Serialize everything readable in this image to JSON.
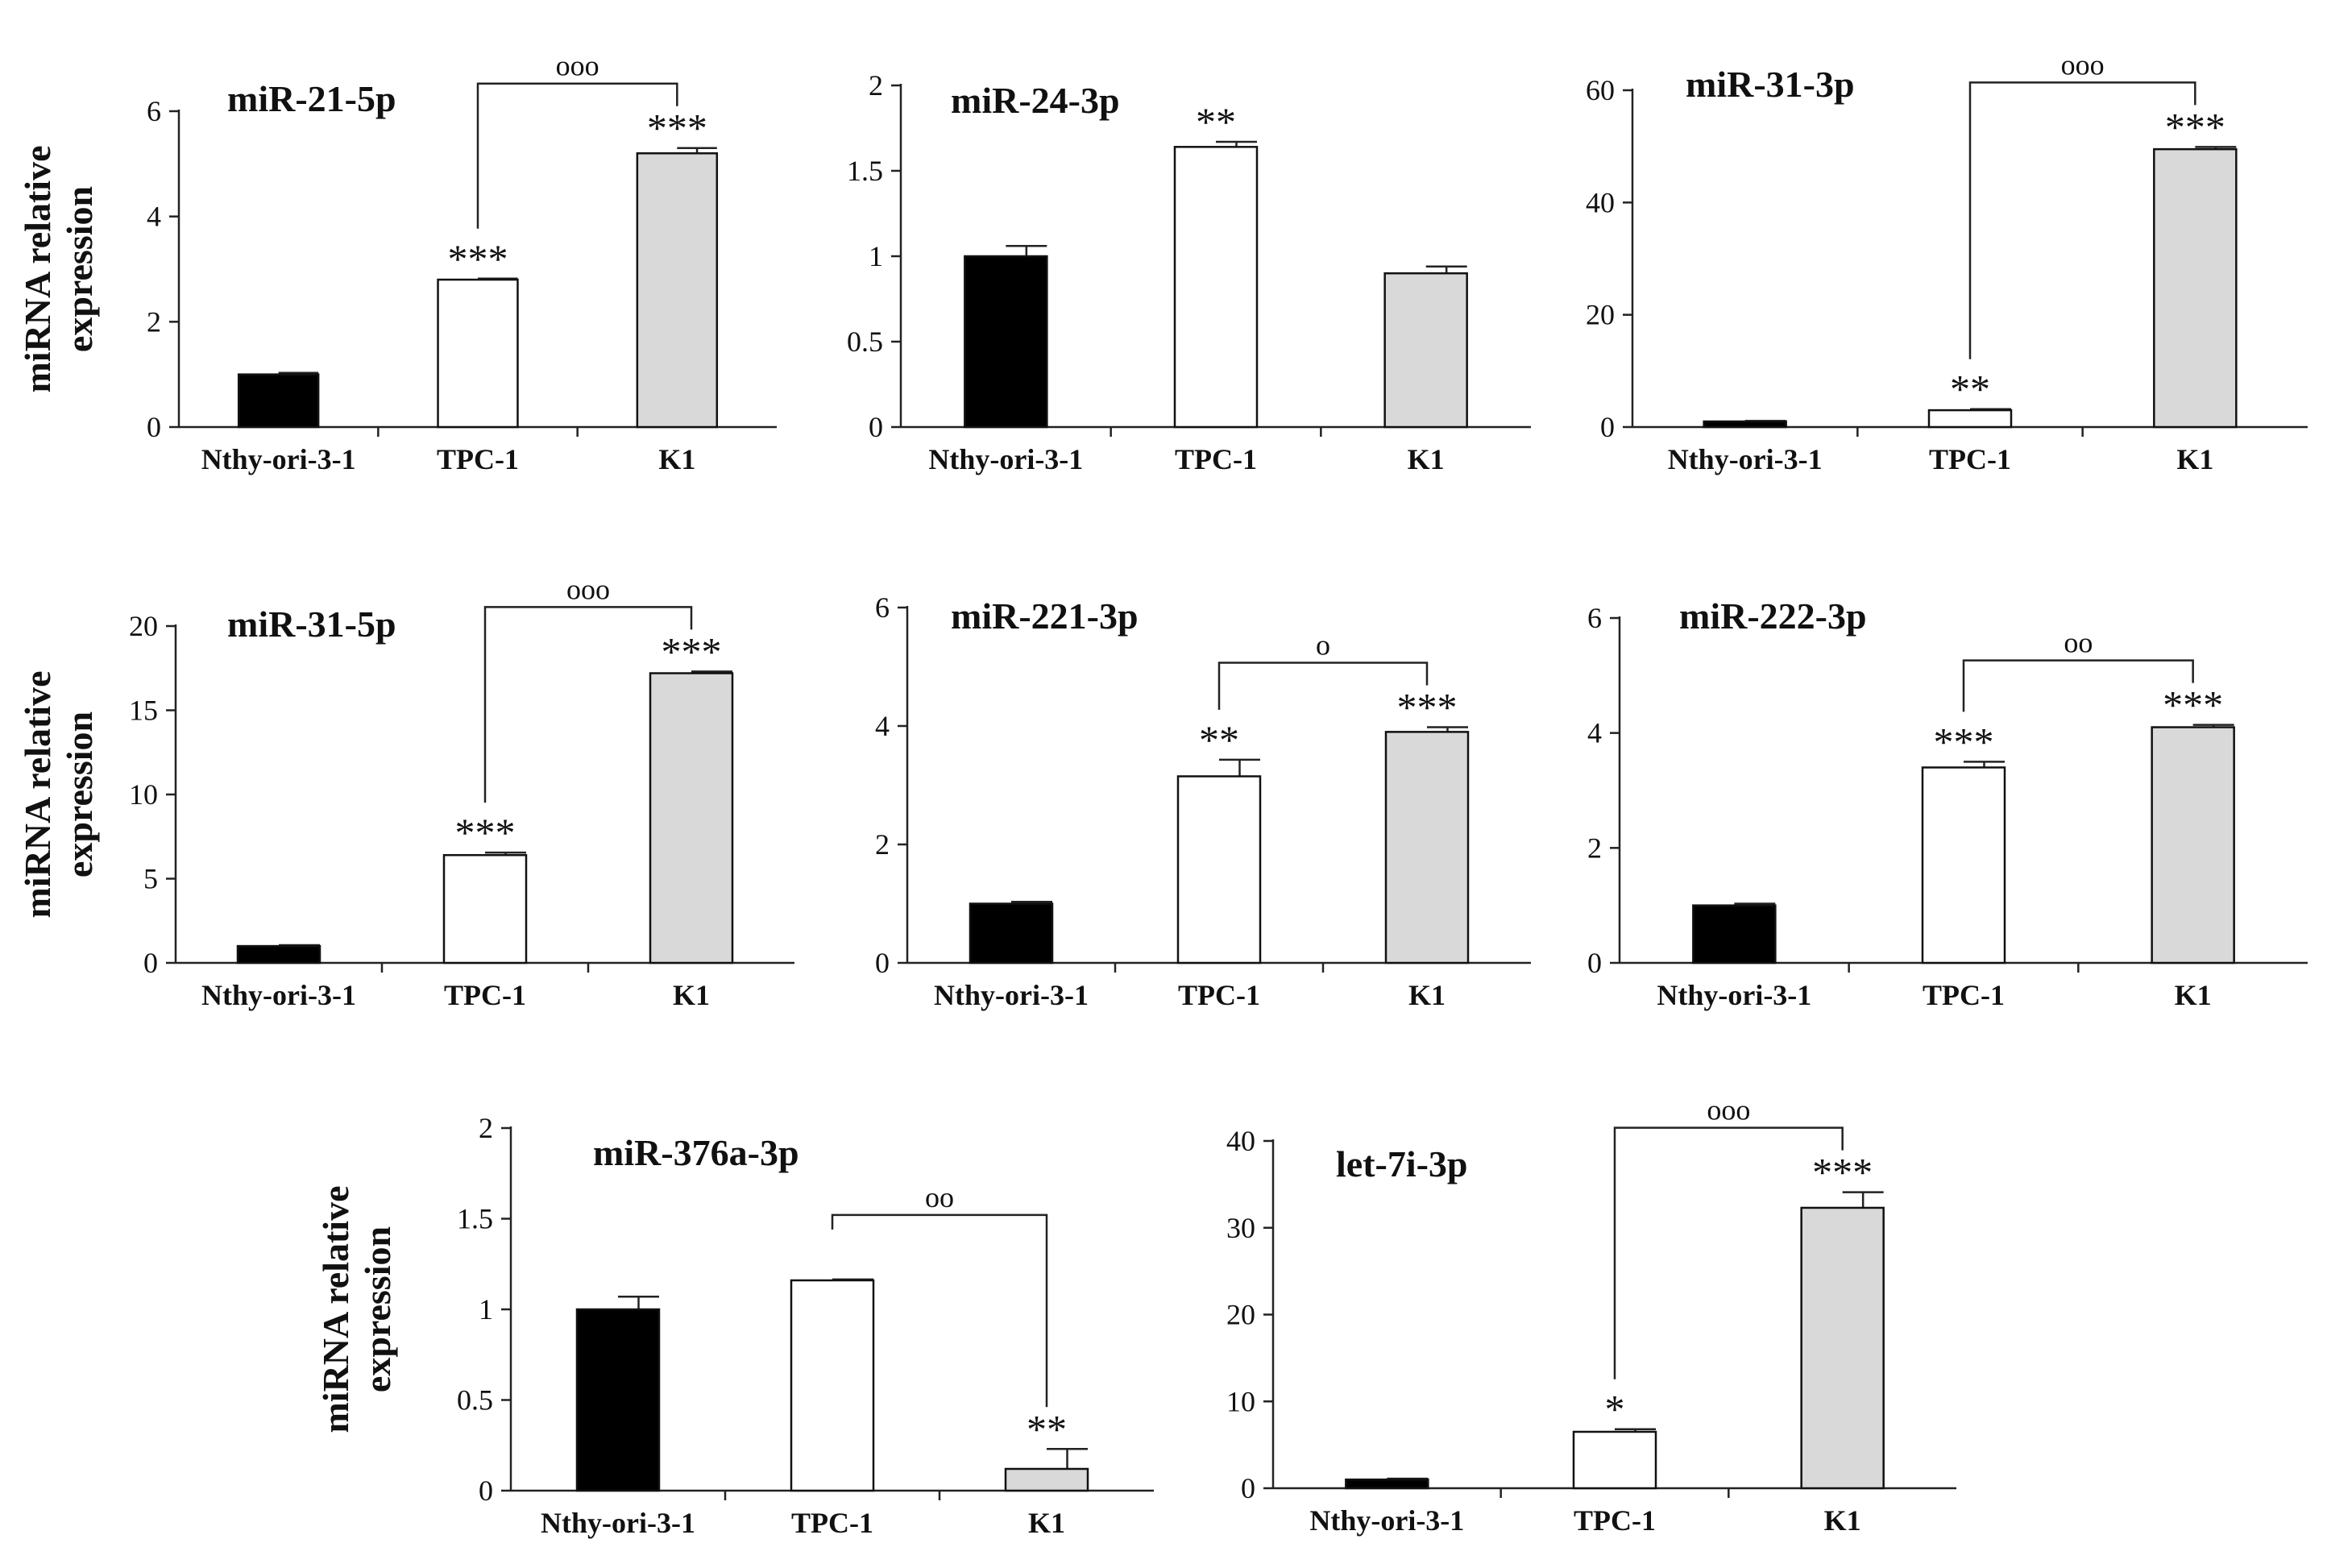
{
  "chart_data": [
    {
      "type": "bar",
      "title": "miR-21-5p",
      "categories": [
        "Nthy-ori-3-1",
        "TPC-1",
        "K1"
      ],
      "values": [
        1.0,
        2.8,
        5.2
      ],
      "errors": [
        0.03,
        0.02,
        0.1
      ],
      "ylim": [
        0,
        6
      ],
      "yticks": [
        0,
        2,
        4,
        6
      ],
      "ylabel": "miRNA relative expression",
      "stars": [
        "",
        "***",
        "***"
      ],
      "bracket": {
        "from": 1,
        "to": 2,
        "label": "ooo"
      }
    },
    {
      "type": "bar",
      "title": "miR-24-3p",
      "categories": [
        "Nthy-ori-3-1",
        "TPC-1",
        "K1"
      ],
      "values": [
        1.0,
        1.64,
        0.9
      ],
      "errors": [
        0.06,
        0.03,
        0.04
      ],
      "ylim": [
        0,
        2
      ],
      "yticks": [
        0,
        0.5,
        1,
        1.5,
        2
      ],
      "ylabel": "",
      "stars": [
        "",
        "**",
        ""
      ],
      "bracket": null
    },
    {
      "type": "bar",
      "title": "miR-31-3p",
      "categories": [
        "Nthy-ori-3-1",
        "TPC-1",
        "K1"
      ],
      "values": [
        1.0,
        3.0,
        49.5
      ],
      "errors": [
        0.1,
        0.2,
        0.4
      ],
      "ylim": [
        0,
        60
      ],
      "yticks": [
        0,
        20,
        40,
        60
      ],
      "ylabel": "",
      "stars": [
        "",
        "**",
        "***"
      ],
      "bracket": {
        "from": 1,
        "to": 2,
        "label": "ooo"
      }
    },
    {
      "type": "bar",
      "title": "miR-31-5p",
      "categories": [
        "Nthy-ori-3-1",
        "TPC-1",
        "K1"
      ],
      "values": [
        1.0,
        6.4,
        17.2
      ],
      "errors": [
        0.05,
        0.15,
        0.1
      ],
      "ylim": [
        0,
        20
      ],
      "yticks": [
        0,
        5,
        10,
        15,
        20
      ],
      "ylabel": "miRNA relative expression",
      "stars": [
        "",
        "***",
        "***"
      ],
      "bracket": {
        "from": 1,
        "to": 2,
        "label": "ooo"
      }
    },
    {
      "type": "bar",
      "title": "miR-221-3p",
      "categories": [
        "Nthy-ori-3-1",
        "TPC-1",
        "K1"
      ],
      "values": [
        1.0,
        3.15,
        3.9
      ],
      "errors": [
        0.03,
        0.28,
        0.08
      ],
      "ylim": [
        0,
        6
      ],
      "yticks": [
        0,
        2,
        4,
        6
      ],
      "ylabel": "",
      "stars": [
        "",
        "**",
        "***"
      ],
      "bracket": {
        "from": 1,
        "to": 2,
        "label": "o"
      }
    },
    {
      "type": "bar",
      "title": "miR-222-3p",
      "categories": [
        "Nthy-ori-3-1",
        "TPC-1",
        "K1"
      ],
      "values": [
        1.0,
        3.4,
        4.1
      ],
      "errors": [
        0.03,
        0.1,
        0.04
      ],
      "ylim": [
        0,
        6
      ],
      "yticks": [
        0,
        2,
        4,
        6
      ],
      "ylabel": "",
      "stars": [
        "",
        "***",
        "***"
      ],
      "bracket": {
        "from": 1,
        "to": 2,
        "label": "oo"
      }
    },
    {
      "type": "bar",
      "title": "miR-376a-3p",
      "categories": [
        "Nthy-ori-3-1",
        "TPC-1",
        "K1"
      ],
      "values": [
        1.0,
        1.16,
        0.12
      ],
      "errors": [
        0.07,
        0.005,
        0.11
      ],
      "ylim": [
        0,
        2
      ],
      "yticks": [
        0,
        0.5,
        1,
        1.5,
        2
      ],
      "ylabel": "miRNA relative expression",
      "stars": [
        "",
        "",
        "**"
      ],
      "bracket": {
        "from": 1,
        "to": 2,
        "label": "oo"
      }
    },
    {
      "type": "bar",
      "title": "let-7i-3p",
      "categories": [
        "Nthy-ori-3-1",
        "TPC-1",
        "K1"
      ],
      "values": [
        1.0,
        6.5,
        32.3
      ],
      "errors": [
        0.1,
        0.3,
        1.8
      ],
      "ylim": [
        0,
        40
      ],
      "yticks": [
        0,
        10,
        20,
        30,
        40
      ],
      "ylabel": "",
      "stars": [
        "",
        "*",
        "***"
      ],
      "bracket": {
        "from": 1,
        "to": 2,
        "label": "ooo"
      }
    }
  ],
  "colors": {
    "bars": [
      "#000000",
      "#ffffff",
      "#d9d9d9"
    ],
    "edge": "#111111"
  }
}
